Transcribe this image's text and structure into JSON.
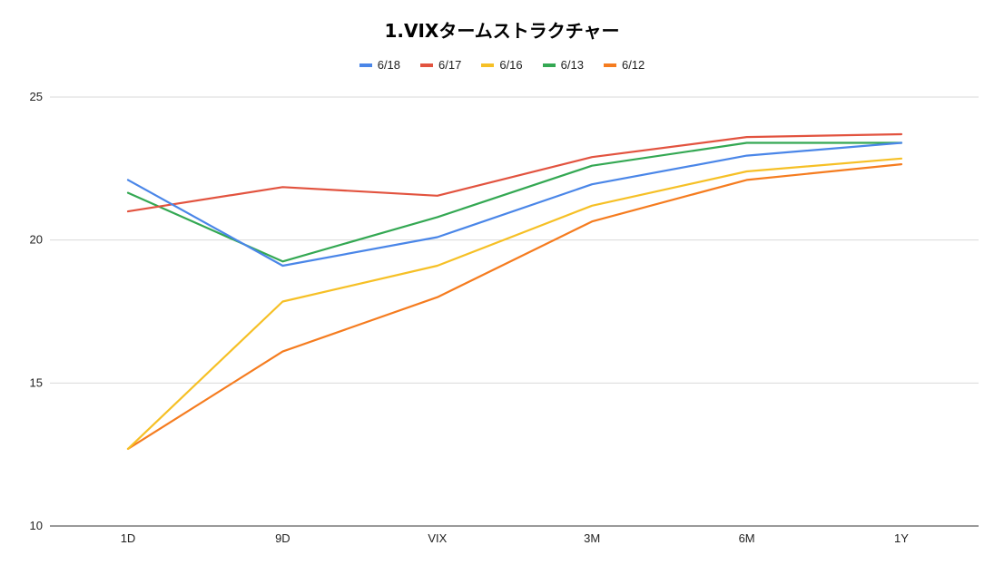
{
  "chart_data": {
    "type": "line",
    "title": "1.VIXタームストラクチャー",
    "xlabel": "",
    "ylabel": "",
    "categories": [
      "1D",
      "9D",
      "VIX",
      "3M",
      "6M",
      "1Y"
    ],
    "ylim": [
      10,
      25
    ],
    "yticks": [
      10,
      15,
      20,
      25
    ],
    "grid": true,
    "legend_position": "top-center",
    "series": [
      {
        "name": "6/18",
        "color": "#4a86e8",
        "values": [
          22.1,
          19.1,
          20.1,
          21.95,
          22.95,
          23.4
        ]
      },
      {
        "name": "6/17",
        "color": "#e2533f",
        "values": [
          21.0,
          21.85,
          21.55,
          22.9,
          23.6,
          23.7
        ]
      },
      {
        "name": "6/16",
        "color": "#f6c026",
        "values": [
          12.7,
          17.85,
          19.1,
          21.2,
          22.4,
          22.85
        ]
      },
      {
        "name": "6/13",
        "color": "#34a853",
        "values": [
          21.65,
          19.25,
          20.8,
          22.6,
          23.4,
          23.4
        ]
      },
      {
        "name": "6/12",
        "color": "#f57c1f",
        "values": [
          12.7,
          16.1,
          18.0,
          20.65,
          22.1,
          22.65
        ]
      }
    ]
  }
}
